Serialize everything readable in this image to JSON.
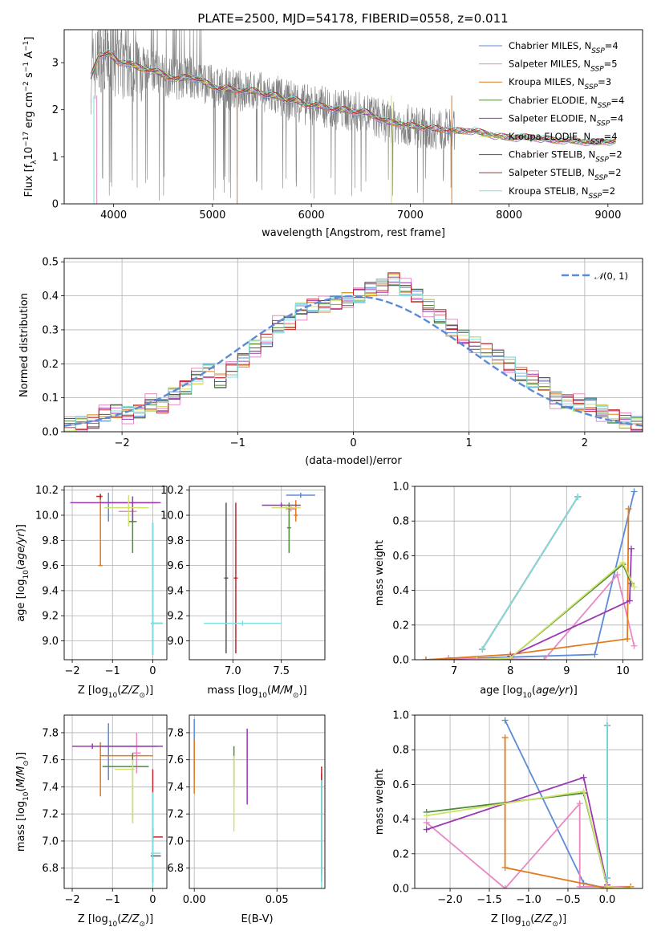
{
  "title": "PLATE=2500, MJD=54178, FIBERID=0558, z=0.011",
  "colors": {
    "series": [
      "#5b8bd8",
      "#e889c4",
      "#e07b1f",
      "#4c8c3c",
      "#9b37b5",
      "#cfe36a",
      "#555555",
      "#c0262b",
      "#7fdfe0"
    ],
    "data_spectrum": "#808080",
    "normal_curve": "#5b8bd8",
    "grid": "#b0b0b0"
  },
  "series_names": [
    "Chabrier MILES, N_SSP=4",
    "Salpeter MILES, N_SSP=5",
    "Kroupa MILES, N_SSP=3",
    "Chabrier ELODIE, N_SSP=4",
    "Salpeter ELODIE, N_SSP=4",
    "Kroupa ELODIE, N_SSP=4",
    "Chabrier STELIB, N_SSP=2",
    "Salpeter STELIB, N_SSP=2",
    "Kroupa STELIB, N_SSP=2"
  ],
  "chart_data": [
    {
      "id": "spectrum",
      "type": "line",
      "xlabel": "wavelength [Angstrom, rest frame]",
      "ylabel": "Flux [f_λ 10^-17 erg cm^-2 s^-1 A^-1]",
      "xlim": [
        3500,
        9350
      ],
      "ylim": [
        0,
        3.7
      ],
      "xticks": [
        4000,
        5000,
        6000,
        7000,
        8000,
        9000
      ],
      "yticks": [
        0,
        1,
        2,
        3
      ],
      "grid": false,
      "legend": "upper right",
      "legend_entries": [
        {
          "name": "Chabrier MILES",
          "nssp": "4"
        },
        {
          "name": "Salpeter MILES",
          "nssp": "5"
        },
        {
          "name": "Kroupa MILES",
          "nssp": "3"
        },
        {
          "name": "Chabrier ELODIE",
          "nssp": "4"
        },
        {
          "name": "Salpeter ELODIE",
          "nssp": "4"
        },
        {
          "name": "Kroupa ELODIE",
          "nssp": "4"
        },
        {
          "name": "Chabrier STELIB",
          "nssp": "2"
        },
        {
          "name": "Salpeter STELIB",
          "nssp": "2"
        },
        {
          "name": "Kroupa STELIB",
          "nssp": "2"
        }
      ],
      "model_continuum": {
        "x": [
          3770,
          3850,
          3950,
          4050,
          4150,
          4250,
          4350,
          4450,
          4550,
          4650,
          4750,
          4850,
          4950,
          5050,
          5150,
          5250,
          5350,
          5450,
          5550,
          5650,
          5750,
          5850,
          5950,
          6050,
          6150,
          6250,
          6350,
          6450,
          6550,
          6650,
          6750,
          6850,
          6950,
          7050,
          7150,
          7250,
          7350,
          7450,
          7550,
          7650,
          7750,
          7850,
          7950,
          8050,
          8150,
          8250,
          8350,
          8450,
          8550,
          8650,
          8750,
          8850,
          8950,
          9050
        ],
        "y": [
          2.7,
          3.15,
          3.2,
          3.0,
          3.0,
          2.9,
          2.85,
          2.8,
          2.7,
          2.65,
          2.7,
          2.65,
          2.55,
          2.45,
          2.45,
          2.4,
          2.4,
          2.4,
          2.3,
          2.3,
          2.2,
          2.2,
          2.1,
          2.1,
          2.05,
          2.0,
          2.0,
          1.95,
          1.95,
          1.85,
          1.75,
          1.72,
          1.68,
          1.65,
          1.62,
          1.6,
          1.58,
          1.55,
          1.55,
          1.55,
          1.5,
          1.45,
          1.42,
          1.4,
          1.42,
          1.4,
          1.38,
          1.35,
          1.35,
          1.34,
          1.32,
          1.3,
          1.33,
          1.32
        ]
      }
    },
    {
      "id": "residuals",
      "type": "histogram",
      "xlabel": "(data-model)/error",
      "ylabel": "Normed distribution",
      "xlim": [
        -2.5,
        2.5
      ],
      "ylim": [
        0,
        0.51
      ],
      "xticks": [
        -2,
        -1,
        0,
        1,
        2
      ],
      "yticks": [
        0.0,
        0.1,
        0.2,
        0.3,
        0.4,
        0.5
      ],
      "grid": true,
      "legend": "upper right",
      "legend_label": "N(0,1)",
      "bins": [
        -2.5,
        -2.4,
        -2.3,
        -2.2,
        -2.1,
        -2.0,
        -1.9,
        -1.8,
        -1.7,
        -1.6,
        -1.5,
        -1.4,
        -1.3,
        -1.2,
        -1.1,
        -1.0,
        -0.9,
        -0.8,
        -0.7,
        -0.6,
        -0.5,
        -0.4,
        -0.3,
        -0.2,
        -0.1,
        0.0,
        0.1,
        0.2,
        0.3,
        0.4,
        0.5,
        0.6,
        0.7,
        0.8,
        0.9,
        1.0,
        1.1,
        1.2,
        1.3,
        1.4,
        1.5,
        1.6,
        1.7,
        1.8,
        1.9,
        2.0,
        2.1,
        2.2,
        2.3,
        2.4,
        2.5
      ],
      "heights": [
        0.02,
        0.025,
        0.03,
        0.05,
        0.06,
        0.055,
        0.06,
        0.08,
        0.075,
        0.11,
        0.13,
        0.16,
        0.18,
        0.15,
        0.18,
        0.21,
        0.25,
        0.27,
        0.31,
        0.32,
        0.36,
        0.37,
        0.37,
        0.38,
        0.39,
        0.4,
        0.42,
        0.43,
        0.45,
        0.42,
        0.4,
        0.37,
        0.34,
        0.3,
        0.28,
        0.26,
        0.24,
        0.22,
        0.2,
        0.17,
        0.15,
        0.14,
        0.1,
        0.09,
        0.08,
        0.08,
        0.06,
        0.045,
        0.03,
        0.025,
        0.015
      ]
    },
    {
      "id": "age_vs_Z",
      "type": "errorbar",
      "xlabel": "Z [log10(Z/Z☉)]",
      "ylabel": "age [log10(age/yr)]",
      "xlim": [
        -2.2,
        0.35
      ],
      "ylim": [
        8.85,
        10.23
      ],
      "xticks": [
        -2,
        -1,
        0
      ],
      "yticks": [
        9.0,
        9.2,
        9.4,
        9.6,
        9.8,
        10.0,
        10.2
      ],
      "grid": true,
      "points": [
        {
          "s": 0,
          "x": -1.1,
          "xerr": [
            0.2,
            1.2
          ],
          "y": 10.1,
          "yerr": [
            0.15,
            0.08
          ]
        },
        {
          "s": 1,
          "x": -0.5,
          "xerr": [
            0.35,
            0.1
          ],
          "y": 10.03,
          "yerr": [
            0.02,
            0.02
          ]
        },
        {
          "s": 2,
          "x": -1.3,
          "xerr": [
            0.05,
            0.05
          ],
          "y": 9.6,
          "yerr": [
            0.0,
            0.57
          ]
        },
        {
          "s": 3,
          "x": -0.5,
          "xerr": [
            0.1,
            0.1
          ],
          "y": 9.95,
          "yerr": [
            0.25,
            0.12
          ]
        },
        {
          "s": 4,
          "x": -0.5,
          "xerr": [
            1.55,
            0.7
          ],
          "y": 10.1,
          "yerr": [
            0.15,
            0.05
          ]
        },
        {
          "s": 5,
          "x": -0.6,
          "xerr": [
            0.6,
            0.5
          ],
          "y": 10.06,
          "yerr": [
            0.15,
            0.1
          ]
        },
        {
          "s": 6,
          "x": 0.0,
          "xerr": [
            0.05,
            0.25
          ],
          "y": 9.14,
          "yerr": [
            0.25,
            0.8
          ]
        },
        {
          "s": 7,
          "x": -1.3,
          "xerr": [
            0.1,
            0.05
          ],
          "y": 10.15,
          "yerr": [
            0.02,
            0.02
          ]
        },
        {
          "s": 8,
          "x": 0.0,
          "xerr": [
            0.05,
            0.25
          ],
          "y": 9.14,
          "yerr": [
            0.25,
            0.8
          ]
        }
      ]
    },
    {
      "id": "age_vs_mass",
      "type": "errorbar",
      "xlabel": "mass [log10(M/M☉)]",
      "ylabel": "",
      "xlim": [
        6.55,
        7.95
      ],
      "ylim": [
        8.85,
        10.23
      ],
      "xticks": [
        7.0,
        7.5
      ],
      "yticks": [
        9.0,
        9.2,
        9.4,
        9.6,
        9.8,
        10.0,
        10.2
      ],
      "grid": true,
      "points": [
        {
          "s": 0,
          "x": 7.7,
          "xerr": [
            0.15,
            0.15
          ],
          "y": 10.16,
          "yerr": [
            0.02,
            0.02
          ]
        },
        {
          "s": 1,
          "x": 7.6,
          "xerr": [
            0.05,
            0.05
          ],
          "y": 10.05,
          "yerr": [
            0.02,
            0.02
          ]
        },
        {
          "s": 2,
          "x": 7.65,
          "xerr": [
            0.02,
            0.02
          ],
          "y": 10.0,
          "yerr": [
            0.05,
            0.12
          ]
        },
        {
          "s": 3,
          "x": 7.58,
          "xerr": [
            0.02,
            0.02
          ],
          "y": 9.9,
          "yerr": [
            0.2,
            0.2
          ]
        },
        {
          "s": 4,
          "x": 7.5,
          "xerr": [
            0.2,
            0.2
          ],
          "y": 10.08,
          "yerr": [
            0.02,
            0.02
          ]
        },
        {
          "s": 5,
          "x": 7.55,
          "xerr": [
            0.15,
            0.15
          ],
          "y": 10.06,
          "yerr": [
            0.02,
            0.02
          ]
        },
        {
          "s": 6,
          "x": 6.93,
          "xerr": [
            0.02,
            0.02
          ],
          "y": 9.5,
          "yerr": [
            0.6,
            0.6
          ]
        },
        {
          "s": 7,
          "x": 7.03,
          "xerr": [
            0.02,
            0.02
          ],
          "y": 9.5,
          "yerr": [
            0.6,
            0.6
          ]
        },
        {
          "s": 8,
          "x": 7.1,
          "xerr": [
            0.4,
            0.4
          ],
          "y": 9.14,
          "yerr": [
            0.02,
            0.02
          ]
        }
      ]
    },
    {
      "id": "mass_weight_vs_age",
      "type": "line",
      "xlabel": "age [log10(age/yr)]",
      "ylabel": "mass weight",
      "xlim": [
        6.3,
        10.35
      ],
      "ylim": [
        0,
        1.0
      ],
      "xticks": [
        7,
        8,
        9,
        10
      ],
      "yticks": [
        0.0,
        0.2,
        0.4,
        0.6,
        0.8,
        1.0
      ],
      "grid": true,
      "series": [
        {
          "s": 0,
          "x": [
            10.2,
            9.5,
            6.5
          ],
          "y": [
            0.97,
            0.03,
            0.0
          ]
        },
        {
          "s": 1,
          "x": [
            10.2,
            9.9,
            8.6,
            6.9
          ],
          "y": [
            0.08,
            0.49,
            0.0,
            0.01
          ]
        },
        {
          "s": 2,
          "x": [
            10.1,
            10.08,
            8.0,
            6.5
          ],
          "y": [
            0.87,
            0.12,
            0.03,
            0.0
          ]
        },
        {
          "s": 3,
          "x": [
            10.15,
            10.0,
            8.0
          ],
          "y": [
            0.44,
            0.55,
            0.01
          ]
        },
        {
          "s": 4,
          "x": [
            10.15,
            10.12,
            8.0
          ],
          "y": [
            0.64,
            0.34,
            0.02
          ]
        },
        {
          "s": 5,
          "x": [
            10.2,
            10.0,
            8.0,
            7.4
          ],
          "y": [
            0.42,
            0.56,
            0.01,
            0.0
          ]
        },
        {
          "s": 6,
          "x": [
            9.2,
            7.5
          ],
          "y": [
            0.94,
            0.06
          ]
        },
        {
          "s": 7,
          "x": [
            9.2,
            7.5
          ],
          "y": [
            0.94,
            0.06
          ]
        },
        {
          "s": 8,
          "x": [
            9.2,
            7.5
          ],
          "y": [
            0.94,
            0.06
          ]
        }
      ]
    },
    {
      "id": "mass_vs_Z",
      "type": "errorbar",
      "xlabel": "Z [log10(Z/Z☉)]",
      "ylabel": "mass [log10(M/M☉)]",
      "xlim": [
        -2.2,
        0.35
      ],
      "ylim": [
        6.65,
        7.93
      ],
      "xticks": [
        -2,
        -1,
        0
      ],
      "yticks": [
        6.8,
        7.0,
        7.2,
        7.4,
        7.6,
        7.8
      ],
      "grid": true,
      "points": [
        {
          "s": 0,
          "x": -1.1,
          "xerr": [
            0.2,
            1.2
          ],
          "y": 7.7,
          "yerr": [
            0.25,
            0.17
          ]
        },
        {
          "s": 1,
          "x": -0.4,
          "xerr": [
            0.1,
            0.1
          ],
          "y": 7.65,
          "yerr": [
            0.15,
            0.15
          ]
        },
        {
          "s": 2,
          "x": -1.3,
          "xerr": [
            0.0,
            1.3
          ],
          "y": 7.63,
          "yerr": [
            0.3,
            0.1
          ]
        },
        {
          "s": 3,
          "x": -0.5,
          "xerr": [
            0.75,
            0.4
          ],
          "y": 7.55,
          "yerr": [
            0.4,
            0.1
          ]
        },
        {
          "s": 4,
          "x": -1.5,
          "xerr": [
            0.5,
            1.75
          ],
          "y": 7.7,
          "yerr": [
            0.02,
            0.02
          ]
        },
        {
          "s": 5,
          "x": -0.5,
          "xerr": [
            0.45,
            0.05
          ],
          "y": 7.53,
          "yerr": [
            0.4,
            0.07
          ]
        },
        {
          "s": 6,
          "x": 0.0,
          "xerr": [
            0.05,
            0.2
          ],
          "y": 6.89,
          "yerr": [
            0.2,
            0.2
          ]
        },
        {
          "s": 7,
          "x": 0.0,
          "xerr": [
            0.0,
            0.25
          ],
          "y": 7.03,
          "yerr": [
            0.02,
            0.5
          ]
        },
        {
          "s": 8,
          "x": 0.0,
          "xerr": [
            0.05,
            0.2
          ],
          "y": 6.91,
          "yerr": [
            0.25,
            0.45
          ]
        }
      ]
    },
    {
      "id": "mass_vs_EBV",
      "type": "errorbar",
      "xlabel": "E(B-V)",
      "ylabel": "",
      "xlim": [
        -0.003,
        0.079
      ],
      "ylim": [
        6.65,
        7.93
      ],
      "xticks": [
        0.0,
        0.05
      ],
      "yticks": [
        6.8,
        7.0,
        7.2,
        7.4,
        7.6,
        7.8
      ],
      "grid": true,
      "points": [
        {
          "s": 0,
          "x": 0.0,
          "xerr": [
            0,
            0
          ],
          "y": 7.7,
          "yerr": [
            0.2,
            0.2
          ]
        },
        {
          "s": 1,
          "x": 0.0,
          "xerr": [
            0,
            0
          ],
          "y": 7.6,
          "yerr": [
            0.15,
            0.15
          ]
        },
        {
          "s": 2,
          "x": 0.0,
          "xerr": [
            0,
            0
          ],
          "y": 7.55,
          "yerr": [
            0.2,
            0.2
          ]
        },
        {
          "s": 3,
          "x": 0.024,
          "xerr": [
            0,
            0
          ],
          "y": 7.55,
          "yerr": [
            0.15,
            0.15
          ]
        },
        {
          "s": 4,
          "x": 0.032,
          "xerr": [
            0,
            0
          ],
          "y": 7.55,
          "yerr": [
            0.28,
            0.28
          ]
        },
        {
          "s": 5,
          "x": 0.024,
          "xerr": [
            0,
            0
          ],
          "y": 7.35,
          "yerr": [
            0.28,
            0.28
          ]
        },
        {
          "s": 6,
          "x": 0.077,
          "xerr": [
            0,
            0
          ],
          "y": 7.1,
          "yerr": [
            0.4,
            0.4
          ]
        },
        {
          "s": 7,
          "x": 0.077,
          "xerr": [
            0,
            0
          ],
          "y": 7.15,
          "yerr": [
            0.4,
            0.4
          ]
        },
        {
          "s": 8,
          "x": 0.077,
          "xerr": [
            0,
            0
          ],
          "y": 7.05,
          "yerr": [
            0.4,
            0.4
          ]
        }
      ]
    },
    {
      "id": "mass_weight_vs_Z",
      "type": "line",
      "xlabel": "Z [log10(Z/Z☉)]",
      "ylabel": "mass weight",
      "xlim": [
        -2.45,
        0.45
      ],
      "ylim": [
        0,
        1.0
      ],
      "xticks": [
        -2.0,
        -1.5,
        -1.0,
        -0.5,
        0.0
      ],
      "yticks": [
        0.0,
        0.2,
        0.4,
        0.6,
        0.8,
        1.0
      ],
      "grid": true,
      "series": [
        {
          "s": 0,
          "x": [
            -1.3,
            -0.3,
            0.0
          ],
          "y": [
            0.97,
            0.03,
            0.0
          ]
        },
        {
          "s": 1,
          "x": [
            -2.3,
            -1.3,
            -0.35,
            -0.35,
            0.3
          ],
          "y": [
            0.38,
            0.0,
            0.49,
            0.01,
            0.01
          ]
        },
        {
          "s": 2,
          "x": [
            -1.3,
            -1.3,
            0.0,
            0.3
          ],
          "y": [
            0.87,
            0.12,
            0.0,
            0.01
          ]
        },
        {
          "s": 3,
          "x": [
            -2.3,
            -0.3,
            0.0
          ],
          "y": [
            0.44,
            0.55,
            0.01
          ]
        },
        {
          "s": 4,
          "x": [
            -2.3,
            -0.3,
            0.0
          ],
          "y": [
            0.34,
            0.64,
            0.02
          ]
        },
        {
          "s": 5,
          "x": [
            -2.3,
            -0.3,
            0.0,
            0.3
          ],
          "y": [
            0.42,
            0.56,
            0.01,
            0.0
          ]
        },
        {
          "s": 6,
          "x": [
            0.0,
            0.0
          ],
          "y": [
            0.94,
            0.06
          ]
        },
        {
          "s": 7,
          "x": [
            0.0,
            0.0
          ],
          "y": [
            0.94,
            0.06
          ]
        },
        {
          "s": 8,
          "x": [
            0.0,
            0.0
          ],
          "y": [
            0.94,
            0.06
          ]
        }
      ]
    }
  ]
}
